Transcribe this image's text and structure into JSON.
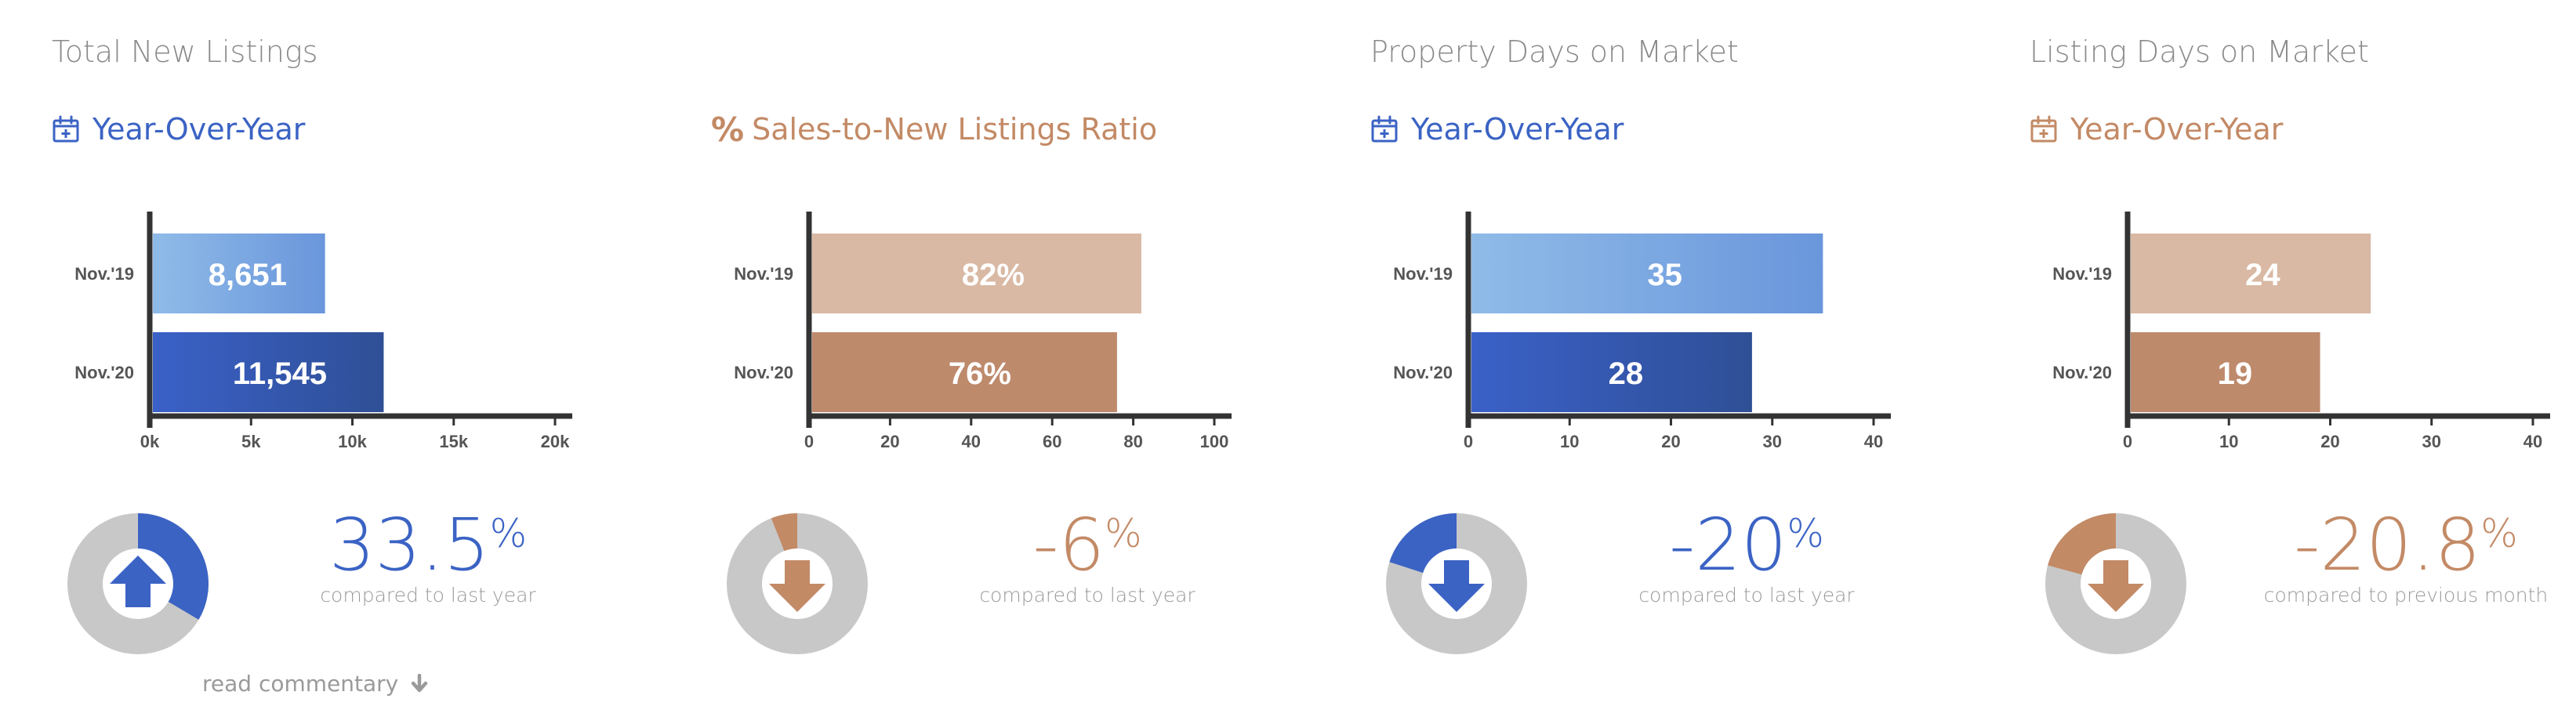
{
  "colors": {
    "blue": "#3b63c4",
    "blue_light_start": "#8fbbe8",
    "blue_light_end": "#6a96dc",
    "blue_dark_start": "#3a61c8",
    "blue_dark_end": "#2f4f96",
    "tan": "#c38a66",
    "tan_light": "#d9b9a4",
    "tan_dark": "#be8a6c",
    "gray": "#c8c8c8",
    "axis": "#333333"
  },
  "panels": [
    {
      "title": "Total New Listings",
      "subtitle": "Year-Over-Year",
      "subtitle_icon": "calendar-plus-icon",
      "theme": "blue",
      "change": {
        "value": "33.5",
        "unit": "%",
        "caption": "compared to last year",
        "fraction": 0.335,
        "direction": "up"
      },
      "chart_data": {
        "type": "bar",
        "orientation": "horizontal",
        "categories": [
          "Nov.'19",
          "Nov.'20"
        ],
        "values": [
          8651,
          11545
        ],
        "value_labels": [
          "8,651",
          "11,545"
        ],
        "xlim": [
          0,
          20000
        ],
        "xticks": [
          0,
          5000,
          10000,
          15000,
          20000
        ],
        "xtick_labels": [
          "0k",
          "5k",
          "10k",
          "15k",
          "20k"
        ],
        "title": "",
        "xlabel": "",
        "ylabel": ""
      }
    },
    {
      "title": "",
      "subtitle": "Sales-to-New Listings Ratio",
      "subtitle_icon": "percent-icon",
      "subtitle_icon_text": "%",
      "theme": "tan",
      "change": {
        "value": "-6",
        "unit": "%",
        "caption": "compared to last year",
        "fraction": 0.06,
        "direction": "down"
      },
      "chart_data": {
        "type": "bar",
        "orientation": "horizontal",
        "categories": [
          "Nov.'19",
          "Nov.'20"
        ],
        "values": [
          82,
          76
        ],
        "value_labels": [
          "82%",
          "76%"
        ],
        "xlim": [
          0,
          100
        ],
        "xticks": [
          0,
          20,
          40,
          60,
          80,
          100
        ],
        "xtick_labels": [
          "0",
          "20",
          "40",
          "60",
          "80",
          "100"
        ],
        "title": "",
        "xlabel": "",
        "ylabel": ""
      }
    },
    {
      "title": "Property Days on Market",
      "subtitle": "Year-Over-Year",
      "subtitle_icon": "calendar-plus-icon",
      "theme": "blue",
      "change": {
        "value": "-20",
        "unit": "%",
        "caption": "compared to last year",
        "fraction": 0.2,
        "direction": "down"
      },
      "chart_data": {
        "type": "bar",
        "orientation": "horizontal",
        "categories": [
          "Nov.'19",
          "Nov.'20"
        ],
        "values": [
          35,
          28
        ],
        "value_labels": [
          "35",
          "28"
        ],
        "xlim": [
          0,
          40
        ],
        "xticks": [
          0,
          10,
          20,
          30,
          40
        ],
        "xtick_labels": [
          "0",
          "10",
          "20",
          "30",
          "40"
        ],
        "title": "",
        "xlabel": "",
        "ylabel": ""
      }
    },
    {
      "title": "Listing Days on Market",
      "subtitle": "Year-Over-Year",
      "subtitle_icon": "calendar-plus-icon",
      "theme": "tan",
      "change": {
        "value": "-20.8",
        "unit": "%",
        "caption": "compared to previous month",
        "fraction": 0.208,
        "direction": "down"
      },
      "chart_data": {
        "type": "bar",
        "orientation": "horizontal",
        "categories": [
          "Nov.'19",
          "Nov.'20"
        ],
        "values": [
          24,
          19
        ],
        "value_labels": [
          "24",
          "19"
        ],
        "xlim": [
          0,
          40
        ],
        "xticks": [
          0,
          10,
          20,
          30,
          40
        ],
        "xtick_labels": [
          "0",
          "10",
          "20",
          "30",
          "40"
        ],
        "title": "",
        "xlabel": "",
        "ylabel": ""
      }
    }
  ],
  "read_commentary": {
    "label": "read commentary",
    "icon": "arrow-down-icon"
  }
}
